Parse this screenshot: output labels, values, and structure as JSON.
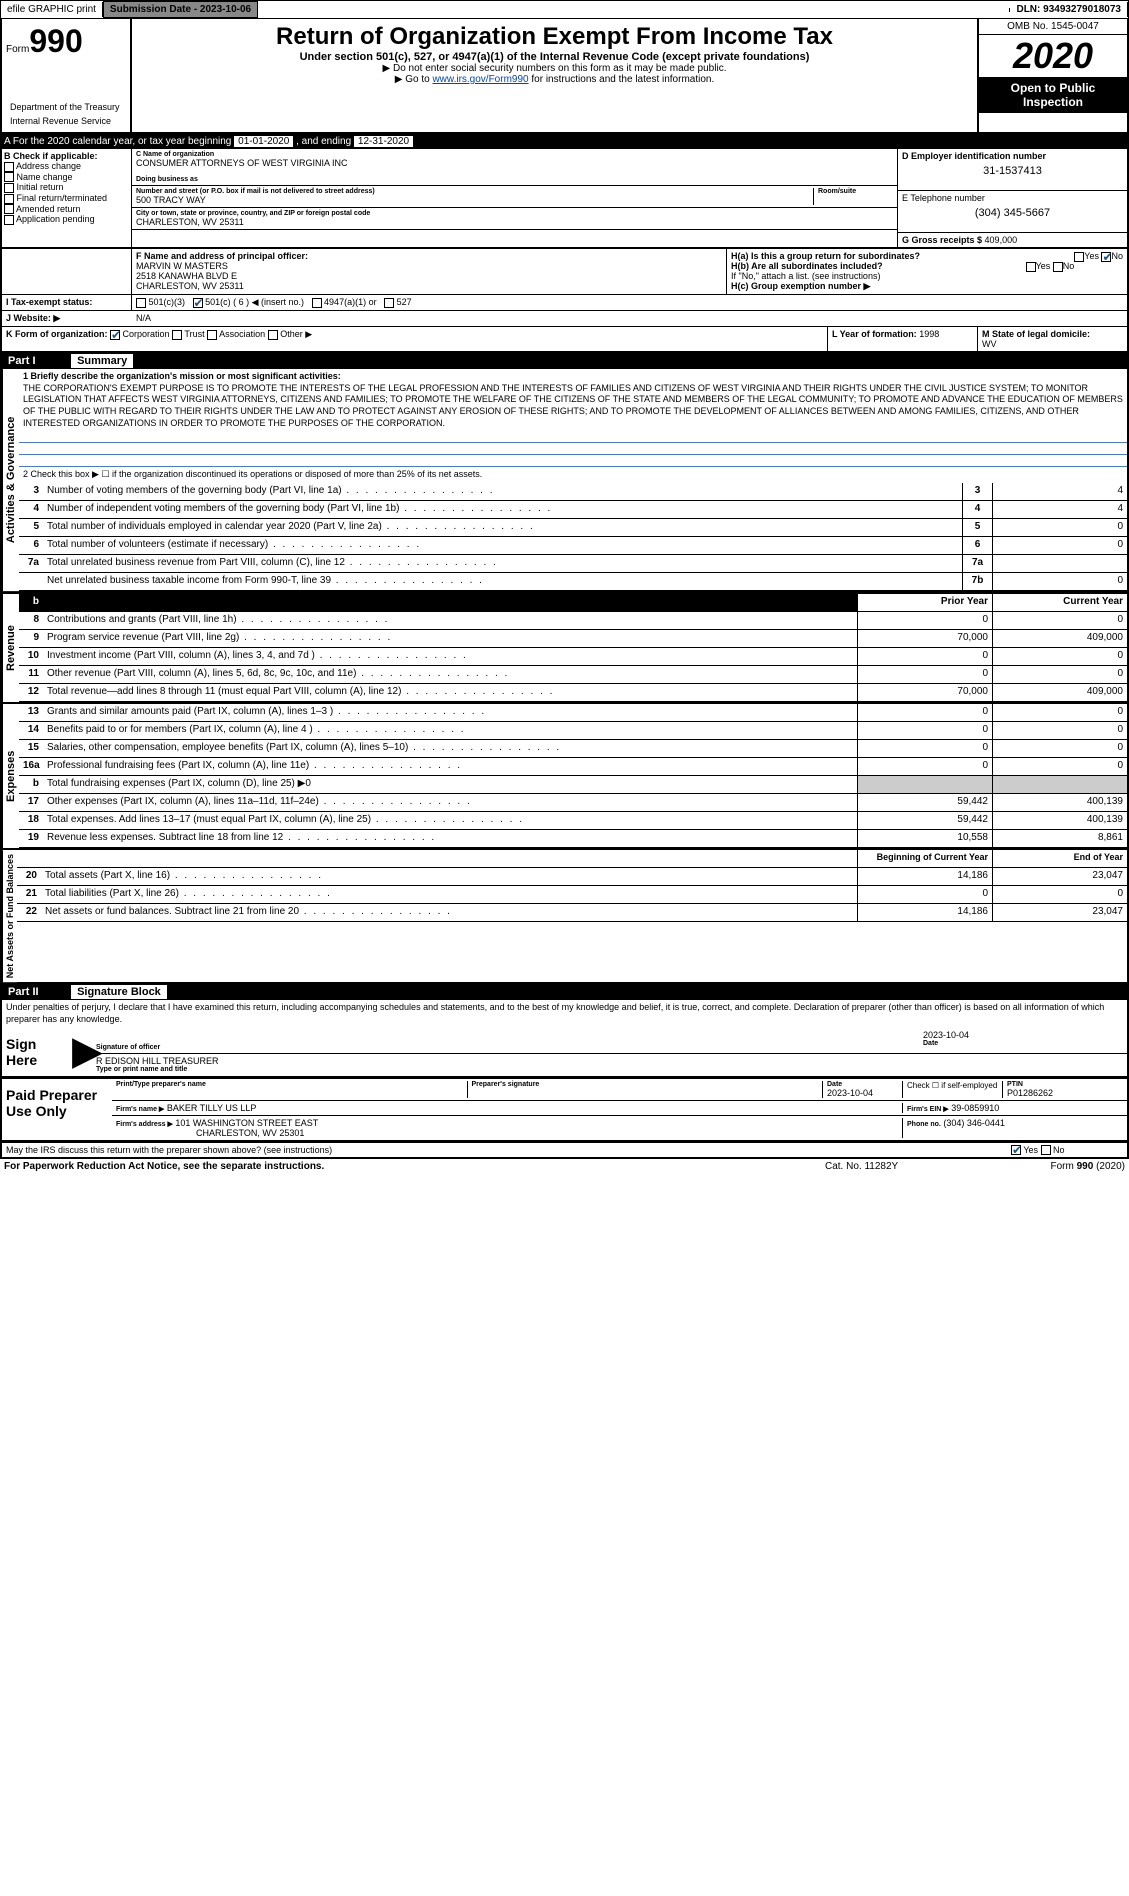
{
  "header": {
    "efile": "efile GRAPHIC print",
    "submission_label": "Submission Date - 2023-10-06",
    "dln": "DLN: 93493279018073"
  },
  "form": {
    "prefix": "Form",
    "number": "990",
    "title": "Return of Organization Exempt From Income Tax",
    "subtitle": "Under section 501(c), 527, or 4947(a)(1) of the Internal Revenue Code (except private foundations)",
    "note1": "▶ Do not enter social security numbers on this form as it may be made public.",
    "note2": "▶ Go to ",
    "note2_link": "www.irs.gov/Form990",
    "note2_suffix": " for instructions and the latest information.",
    "dept1": "Department of the Treasury",
    "dept2": "Internal Revenue Service",
    "omb": "OMB No. 1545-0047",
    "year": "2020",
    "inspection": "Open to Public Inspection"
  },
  "tax_year": {
    "prefix": "A For the 2020 calendar year, or tax year beginning ",
    "begin": "01-01-2020",
    "mid": " , and ending ",
    "end": "12-31-2020"
  },
  "section_b": {
    "label": "B Check if applicable:",
    "opts": [
      "Address change",
      "Name change",
      "Initial return",
      "Final return/terminated",
      "Amended return",
      "Application pending"
    ]
  },
  "section_c": {
    "name_label": "C Name of organization",
    "name": "CONSUMER ATTORNEYS OF WEST VIRGINIA INC",
    "dba_label": "Doing business as",
    "dba": "",
    "addr_label": "Number and street (or P.O. box if mail is not delivered to street address)",
    "addr": "500 TRACY WAY",
    "room_label": "Room/suite",
    "city_label": "City or town, state or province, country, and ZIP or foreign postal code",
    "city": "CHARLESTON, WV  25311"
  },
  "section_d": {
    "label": "D Employer identification number",
    "ein": "31-1537413"
  },
  "section_e": {
    "label": "E Telephone number",
    "phone": "(304) 345-5667"
  },
  "section_g": {
    "label": "G Gross receipts $ ",
    "val": "409,000"
  },
  "section_f": {
    "label": "F Name and address of principal officer:",
    "name": "MARVIN W MASTERS",
    "addr1": "2518 KANAWHA BLVD E",
    "addr2": "CHARLESTON, WV  25311"
  },
  "section_h": {
    "ha": "H(a) Is this a group return for subordinates?",
    "hb": "H(b) Are all subordinates included?",
    "hb_note": "If \"No,\" attach a list. (see instructions)",
    "hc": "H(c) Group exemption number ▶"
  },
  "tax_exempt": {
    "label": "I Tax-exempt status:",
    "opts": [
      "501(c)(3)",
      "501(c) ( 6 ) ◀ (insert no.)",
      "4947(a)(1) or",
      "527"
    ]
  },
  "website": {
    "label": "J Website: ▶",
    "val": "N/A"
  },
  "section_k": {
    "label": "K Form of organization:",
    "opts": [
      "Corporation",
      "Trust",
      "Association",
      "Other ▶"
    ]
  },
  "section_l": {
    "label": "L Year of formation: ",
    "val": "1998"
  },
  "section_m": {
    "label": "M State of legal domicile:",
    "val": "WV"
  },
  "part1": {
    "header": "Part I",
    "title": "Summary",
    "line1_label": "1 Briefly describe the organization's mission or most significant activities:",
    "mission": "THE CORPORATION'S EXEMPT PURPOSE IS TO PROMOTE THE INTERESTS OF THE LEGAL PROFESSION AND THE INTERESTS OF FAMILIES AND CITIZENS OF WEST VIRGINIA AND THEIR RIGHTS UNDER THE CIVIL JUSTICE SYSTEM; TO MONITOR LEGISLATION THAT AFFECTS WEST VIRGINIA ATTORNEYS, CITIZENS AND FAMILIES; TO PROMOTE THE WELFARE OF THE CITIZENS OF THE STATE AND MEMBERS OF THE LEGAL COMMUNITY; TO PROMOTE AND ADVANCE THE EDUCATION OF MEMBERS OF THE PUBLIC WITH REGARD TO THEIR RIGHTS UNDER THE LAW AND TO PROTECT AGAINST ANY EROSION OF THESE RIGHTS; AND TO PROMOTE THE DEVELOPMENT OF ALLIANCES BETWEEN AND AMONG FAMILIES, CITIZENS, AND OTHER INTERESTED ORGANIZATIONS IN ORDER TO PROMOTE THE PURPOSES OF THE CORPORATION.",
    "line2": "2 Check this box ▶ ☐ if the organization discontinued its operations or disposed of more than 25% of its net assets.",
    "governance_side": "Activities & Governance",
    "revenue_side": "Revenue",
    "expenses_side": "Expenses",
    "netassets_side": "Net Assets or Fund Balances",
    "rows_gov": [
      {
        "n": "3",
        "t": "Number of voting members of the governing body (Part VI, line 1a)",
        "box": "3",
        "v": "4"
      },
      {
        "n": "4",
        "t": "Number of independent voting members of the governing body (Part VI, line 1b)",
        "box": "4",
        "v": "4"
      },
      {
        "n": "5",
        "t": "Total number of individuals employed in calendar year 2020 (Part V, line 2a)",
        "box": "5",
        "v": "0"
      },
      {
        "n": "6",
        "t": "Total number of volunteers (estimate if necessary)",
        "box": "6",
        "v": "0"
      },
      {
        "n": "7a",
        "t": "Total unrelated business revenue from Part VIII, column (C), line 12",
        "box": "7a",
        "v": ""
      },
      {
        "n": "",
        "t": "Net unrelated business taxable income from Form 990-T, line 39",
        "box": "7b",
        "v": "0"
      }
    ],
    "col_headers": {
      "prior": "Prior Year",
      "current": "Current Year"
    },
    "rows_rev": [
      {
        "n": "8",
        "t": "Contributions and grants (Part VIII, line 1h)",
        "p": "0",
        "c": "0"
      },
      {
        "n": "9",
        "t": "Program service revenue (Part VIII, line 2g)",
        "p": "70,000",
        "c": "409,000"
      },
      {
        "n": "10",
        "t": "Investment income (Part VIII, column (A), lines 3, 4, and 7d )",
        "p": "0",
        "c": "0"
      },
      {
        "n": "11",
        "t": "Other revenue (Part VIII, column (A), lines 5, 6d, 8c, 9c, 10c, and 11e)",
        "p": "0",
        "c": "0"
      },
      {
        "n": "12",
        "t": "Total revenue—add lines 8 through 11 (must equal Part VIII, column (A), line 12)",
        "p": "70,000",
        "c": "409,000"
      }
    ],
    "rows_exp": [
      {
        "n": "13",
        "t": "Grants and similar amounts paid (Part IX, column (A), lines 1–3 )",
        "p": "0",
        "c": "0"
      },
      {
        "n": "14",
        "t": "Benefits paid to or for members (Part IX, column (A), line 4 )",
        "p": "0",
        "c": "0"
      },
      {
        "n": "15",
        "t": "Salaries, other compensation, employee benefits (Part IX, column (A), lines 5–10)",
        "p": "0",
        "c": "0"
      },
      {
        "n": "16a",
        "t": "Professional fundraising fees (Part IX, column (A), line 11e)",
        "p": "0",
        "c": "0"
      },
      {
        "n": "b",
        "t": "Total fundraising expenses (Part IX, column (D), line 25) ▶0",
        "p": "",
        "c": "",
        "shaded": true
      },
      {
        "n": "17",
        "t": "Other expenses (Part IX, column (A), lines 11a–11d, 11f–24e)",
        "p": "59,442",
        "c": "400,139"
      },
      {
        "n": "18",
        "t": "Total expenses. Add lines 13–17 (must equal Part IX, column (A), line 25)",
        "p": "59,442",
        "c": "400,139"
      },
      {
        "n": "19",
        "t": "Revenue less expenses. Subtract line 18 from line 12",
        "p": "10,558",
        "c": "8,861"
      }
    ],
    "net_headers": {
      "begin": "Beginning of Current Year",
      "end": "End of Year"
    },
    "rows_net": [
      {
        "n": "20",
        "t": "Total assets (Part X, line 16)",
        "p": "14,186",
        "c": "23,047"
      },
      {
        "n": "21",
        "t": "Total liabilities (Part X, line 26)",
        "p": "0",
        "c": "0"
      },
      {
        "n": "22",
        "t": "Net assets or fund balances. Subtract line 21 from line 20",
        "p": "14,186",
        "c": "23,047"
      }
    ]
  },
  "part2": {
    "header": "Part II",
    "title": "Signature Block",
    "declaration": "Under penalties of perjury, I declare that I have examined this return, including accompanying schedules and statements, and to the best of my knowledge and belief, it is true, correct, and complete. Declaration of preparer (other than officer) is based on all information of which preparer has any knowledge."
  },
  "sign": {
    "label": "Sign Here",
    "sig_officer": "Signature of officer",
    "date": "2023-10-04",
    "date_label": "Date",
    "name": "R EDISON HILL  TREASURER",
    "name_label": "Type or print name and title"
  },
  "preparer": {
    "label": "Paid Preparer Use Only",
    "print_label": "Print/Type preparer's name",
    "sig_label": "Preparer's signature",
    "date_label": "Date",
    "date": "2023-10-04",
    "check_label": "Check ☐ if self-employed",
    "ptin_label": "PTIN",
    "ptin": "P01286262",
    "firm_name_label": "Firm's name ▶",
    "firm_name": "BAKER TILLY US LLP",
    "firm_ein_label": "Firm's EIN ▶",
    "firm_ein": "39-0859910",
    "firm_addr_label": "Firm's address ▶",
    "firm_addr": "101 WASHINGTON STREET EAST",
    "firm_city": "CHARLESTON, WV  25301",
    "phone_label": "Phone no.",
    "phone": "(304) 346-0441"
  },
  "footer": {
    "discuss": "May the IRS discuss this return with the preparer shown above? (see instructions)",
    "pra": "For Paperwork Reduction Act Notice, see the separate instructions.",
    "cat": "Cat. No. 11282Y",
    "form": "Form 990 (2020)"
  }
}
